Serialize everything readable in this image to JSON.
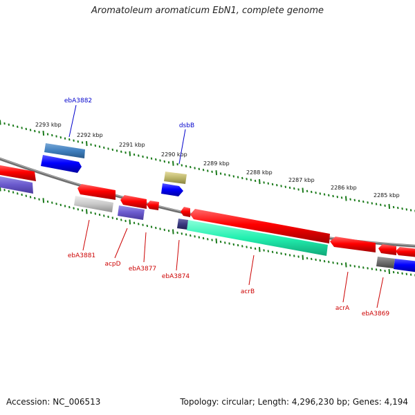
{
  "title": "Aromatoleum aromaticum EbN1, complete genome",
  "footer": {
    "accession": "Accession: NC_006513",
    "summary": "Topology: circular; Length: 4,296,230 bp; Genes: 4,194"
  },
  "colors": {
    "backbone": "#7a7a7a",
    "ticks": "#1a7a1a",
    "label_forward": "#0000cc",
    "label_reverse": "#cc0000"
  },
  "ruler_labels": [
    "2293 kbp",
    "2292 kbp",
    "2291 kbp",
    "2290 kbp",
    "2289 kbp",
    "2288 kbp",
    "2287 kbp",
    "2286 kbp",
    "2285 kbp"
  ],
  "gene_labels": {
    "forward": [
      "ebA3882",
      "dsbB"
    ],
    "reverse": [
      "ebA3881",
      "acpD",
      "ebA3877",
      "ebA3874",
      "acrB",
      "acrA",
      "ebA3869"
    ]
  }
}
